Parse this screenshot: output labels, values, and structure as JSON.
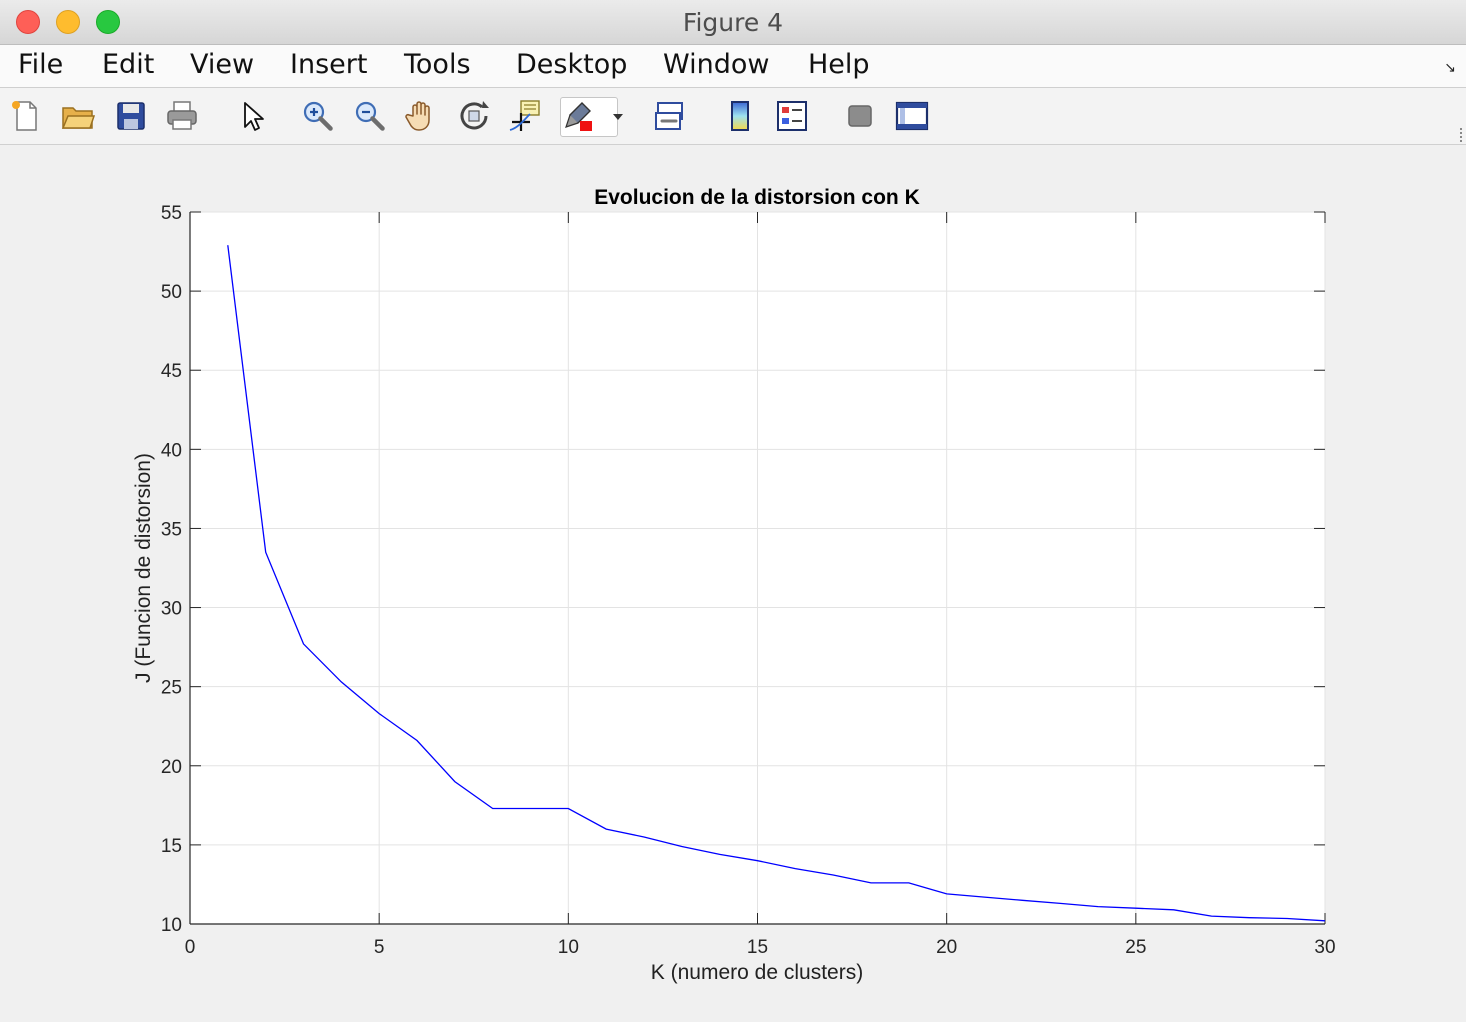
{
  "window": {
    "title": "Figure 4"
  },
  "menu": {
    "items": [
      "File",
      "Edit",
      "View",
      "Insert",
      "Tools",
      "Desktop",
      "Window",
      "Help"
    ]
  },
  "toolbar": {
    "icons": [
      "new-figure-icon",
      "open-file-icon",
      "save-icon",
      "print-icon",
      "edit-plot-cursor-icon",
      "zoom-in-icon",
      "zoom-out-icon",
      "pan-hand-icon",
      "rotate-3d-icon",
      "data-cursor-icon",
      "brush-icon",
      "brush-dropdown-icon",
      "link-plot-icon",
      "colorbar-icon",
      "legend-icon",
      "hide-plot-tools-icon",
      "show-plot-tools-icon"
    ]
  },
  "chart_data": {
    "type": "line",
    "title": "Evolucion de la distorsion con K",
    "xlabel": "K (numero de clusters)",
    "ylabel": "J (Funcion de distorsion)",
    "xlim": [
      0,
      30
    ],
    "ylim": [
      10,
      55
    ],
    "xticks": [
      0,
      5,
      10,
      15,
      20,
      25,
      30
    ],
    "yticks": [
      10,
      15,
      20,
      25,
      30,
      35,
      40,
      45,
      50,
      55
    ],
    "grid": true,
    "series": [
      {
        "color": "#0000ff",
        "x": [
          1,
          2,
          3,
          4,
          5,
          6,
          7,
          8,
          9,
          10,
          11,
          12,
          13,
          14,
          15,
          16,
          17,
          18,
          19,
          20,
          21,
          22,
          23,
          24,
          25,
          26,
          27,
          28,
          29,
          30
        ],
        "y": [
          52.9,
          33.5,
          27.7,
          25.3,
          23.3,
          21.6,
          19.0,
          17.3,
          17.3,
          17.3,
          16.0,
          15.5,
          14.9,
          14.4,
          14.0,
          13.5,
          13.1,
          12.6,
          12.6,
          11.9,
          11.7,
          11.5,
          11.3,
          11.1,
          11.0,
          10.9,
          10.5,
          10.4,
          10.35,
          10.2
        ]
      }
    ]
  }
}
